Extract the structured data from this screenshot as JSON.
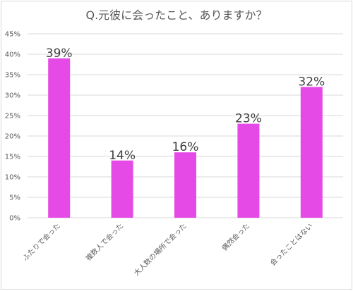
{
  "chart_data": {
    "type": "bar",
    "title": "Q.元彼に会ったこと、ありますか？",
    "categories": [
      "ふたりで会った",
      "複数人で会った",
      "大人数の場所で会った",
      "偶然会った",
      "会ったことはない"
    ],
    "values": [
      39,
      14,
      16,
      23,
      32
    ],
    "data_labels": [
      "39%",
      "14%",
      "16%",
      "23%",
      "32%"
    ],
    "ylim": [
      0,
      45
    ],
    "yticks": [
      0,
      5,
      10,
      15,
      20,
      25,
      30,
      35,
      40,
      45
    ],
    "ytick_labels": [
      "0%",
      "5%",
      "10%",
      "15%",
      "20%",
      "25%",
      "30%",
      "35%",
      "40%",
      "45%"
    ],
    "grid": true,
    "legend": "none",
    "colors": {
      "bar": "#e64ae6",
      "grid": "#d9d9d9"
    }
  }
}
